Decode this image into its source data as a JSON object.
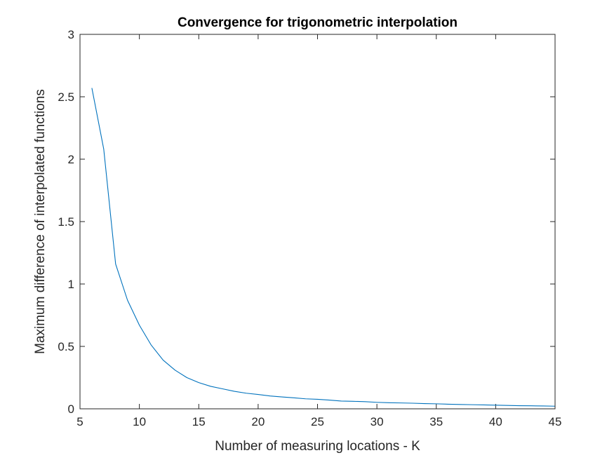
{
  "chart_data": {
    "type": "line",
    "title": "Convergence for trigonometric interpolation",
    "xlabel": "Number of measuring locations - K",
    "ylabel": "Maximum difference of interpolated functions",
    "xlim": [
      5,
      45
    ],
    "ylim": [
      0,
      3
    ],
    "xticks": [
      5,
      10,
      15,
      20,
      25,
      30,
      35,
      40,
      45
    ],
    "yticks": [
      0,
      0.5,
      1,
      1.5,
      2,
      2.5,
      3
    ],
    "xtick_labels": [
      "5",
      "10",
      "15",
      "20",
      "25",
      "30",
      "35",
      "40",
      "45"
    ],
    "ytick_labels": [
      "0",
      "0.5",
      "1",
      "1.5",
      "2",
      "2.5",
      "3"
    ],
    "grid": false,
    "box": true,
    "series": [
      {
        "color": "#0072bd",
        "x": [
          6,
          7,
          8,
          9,
          10,
          11,
          12,
          13,
          14,
          15,
          16,
          17,
          18,
          19,
          20,
          21,
          22,
          23,
          24,
          25,
          26,
          27,
          28,
          29,
          30,
          31,
          32,
          33,
          34,
          35,
          36,
          37,
          38,
          39,
          40,
          41,
          42,
          43,
          44,
          45
        ],
        "y": [
          2.57,
          2.08,
          1.16,
          0.87,
          0.67,
          0.51,
          0.39,
          0.31,
          0.25,
          0.21,
          0.18,
          0.16,
          0.14,
          0.125,
          0.115,
          0.103,
          0.095,
          0.088,
          0.08,
          0.076,
          0.07,
          0.062,
          0.06,
          0.057,
          0.052,
          0.049,
          0.047,
          0.045,
          0.042,
          0.04,
          0.037,
          0.035,
          0.033,
          0.031,
          0.029,
          0.027,
          0.025,
          0.024,
          0.023,
          0.021
        ]
      }
    ]
  }
}
